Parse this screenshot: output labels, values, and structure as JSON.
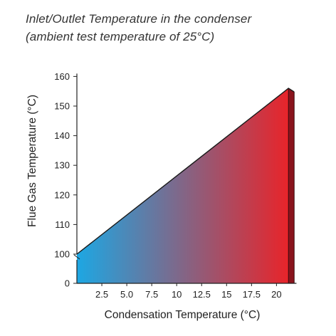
{
  "chart_data": {
    "type": "area",
    "title": "Inlet/Outlet Temperature in the condenser",
    "subtitle": "(ambient test temperature of 25°C)",
    "xlabel": "Condensation Temperature (°C)",
    "ylabel": "Flue Gas Temperature (°C)",
    "xlim": [
      0,
      22
    ],
    "ylim": [
      0,
      160
    ],
    "y_axis_break": true,
    "xticks": [
      "2.5",
      "5.0",
      "7.5",
      "10",
      "12.5",
      "15",
      "17.5",
      "20"
    ],
    "xtick_values": [
      2.5,
      5.0,
      7.5,
      10,
      12.5,
      15,
      17.5,
      20
    ],
    "yticks": [
      "0",
      "100",
      "110",
      "120",
      "130",
      "140",
      "150",
      "160"
    ],
    "ytick_values": [
      0,
      100,
      110,
      120,
      130,
      140,
      150,
      160
    ],
    "series": [
      {
        "x": [
          0,
          21.2
        ],
        "y": [
          100,
          156
        ]
      }
    ],
    "gradient": {
      "start": "#1da7e3",
      "end": "#e8242a"
    },
    "side_band_color": "#8a141d",
    "grid": false,
    "legend": "none"
  }
}
